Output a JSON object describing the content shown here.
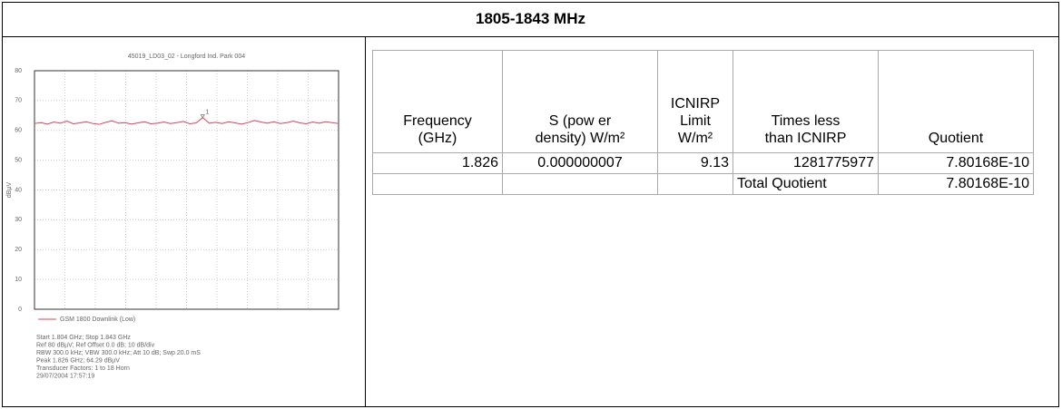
{
  "title": "1805-1843 MHz",
  "spectrum": {
    "type": "line",
    "title": "45019_LD03_02 - Longford Ind. Park 004",
    "ylabel": "dBµV",
    "ylim": [
      0,
      80
    ],
    "yticks": [
      0,
      10,
      20,
      30,
      40,
      50,
      60,
      70,
      80
    ],
    "grid": true,
    "color": "#e0405a",
    "legend": "GSM 1800 Downlink (Low)",
    "values": [
      62.3,
      62.6,
      62.1,
      62.8,
      62.4,
      63.1,
      62.2,
      62.5,
      62.9,
      62.3,
      62.0,
      62.7,
      63.2,
      62.4,
      62.6,
      62.1,
      62.5,
      62.9,
      62.2,
      62.4,
      62.8,
      62.3,
      62.6,
      63.0,
      62.2,
      62.5,
      64.29,
      62.4,
      62.7,
      62.3,
      62.9,
      62.5,
      62.1,
      62.6,
      63.3,
      62.8,
      62.4,
      62.9,
      62.3,
      62.6,
      63.1,
      62.5,
      62.2,
      62.8,
      62.4,
      62.9,
      62.6,
      62.3
    ],
    "marker": {
      "label": "1",
      "value": 64.29
    },
    "info": [
      "Start 1.804 GHz; Stop 1.843 GHz",
      "Ref 80 dBµV; Ref Offset 0.0 dB; 10 dB/div",
      "RBW 300.0 kHz; VBW 300.0 kHz; Att 10 dB; Swp 20.0 mS",
      "Peak 1.826 GHz; 64.29 dBµV",
      "Transducer Factors: 1 to 18 Horn",
      "29/07/2004 17:57:19"
    ]
  },
  "table": {
    "headers": [
      [
        "Frequency",
        "(GHz)"
      ],
      [
        "S (pow er",
        "density) W/m²"
      ],
      [
        "ICNIRP",
        "Limit",
        "W/m²"
      ],
      [
        "Times less",
        "than ICNIRP"
      ],
      [
        "Quotient"
      ]
    ],
    "rows": [
      [
        "1.826",
        "0.000000007",
        "9.13",
        "1281775977",
        "7.80168E-10"
      ],
      [
        "",
        "",
        "",
        "Total Quotient",
        "7.80168E-10"
      ]
    ]
  }
}
